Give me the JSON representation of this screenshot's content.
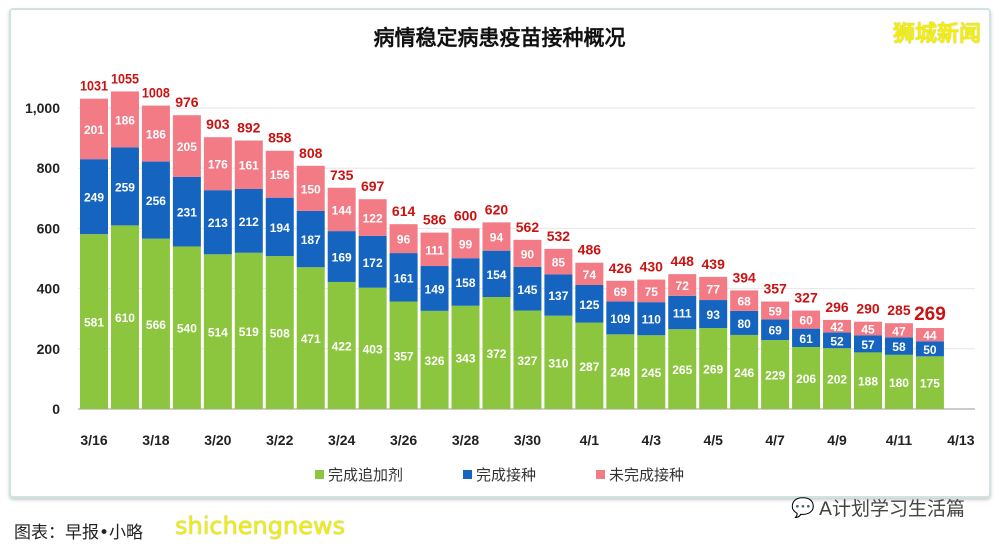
{
  "brand": "狮城新闻",
  "wechat": "A计划学习生活篇",
  "credit": "图表：早报•小略",
  "watermark": "shichengnews",
  "colors": {
    "booster": "#8cc63f",
    "completed": "#1565c0",
    "incomplete": "#f37b86",
    "total_label": "#cc1111"
  },
  "chart_data": {
    "type": "bar",
    "stacked": true,
    "title": "病情稳定病患疫苗接种概况",
    "categories": [
      "3/16",
      "3/17",
      "3/18",
      "3/19",
      "3/20",
      "3/21",
      "3/22",
      "3/23",
      "3/24",
      "3/25",
      "3/26",
      "3/27",
      "3/28",
      "3/29",
      "3/30",
      "3/31",
      "4/1",
      "4/2",
      "4/3",
      "4/4",
      "4/5",
      "4/6",
      "4/7",
      "4/8",
      "4/9",
      "4/10",
      "4/11",
      "4/12"
    ],
    "x_tick_labels": [
      "3/16",
      "3/18",
      "3/20",
      "3/22",
      "3/24",
      "3/26",
      "3/28",
      "3/30",
      "4/1",
      "4/3",
      "4/5",
      "4/7",
      "4/9",
      "4/11",
      "4/13"
    ],
    "y_tick_labels": [
      "0",
      "200",
      "400",
      "600",
      "800",
      "1,000"
    ],
    "ylim": [
      0,
      1000
    ],
    "grid": true,
    "legend_position": "bottom",
    "series": [
      {
        "name": "完成追加剂",
        "values": [
          581,
          610,
          566,
          540,
          514,
          519,
          508,
          471,
          422,
          403,
          357,
          326,
          343,
          372,
          327,
          310,
          287,
          248,
          245,
          265,
          269,
          246,
          229,
          206,
          202,
          188,
          180,
          175
        ]
      },
      {
        "name": "完成接种",
        "values": [
          249,
          259,
          256,
          231,
          213,
          212,
          194,
          187,
          169,
          172,
          161,
          149,
          158,
          154,
          145,
          137,
          125,
          109,
          110,
          111,
          93,
          80,
          69,
          61,
          52,
          57,
          58,
          50
        ]
      },
      {
        "name": "未完成接种",
        "values": [
          201,
          186,
          186,
          205,
          176,
          161,
          156,
          150,
          144,
          122,
          96,
          111,
          99,
          94,
          90,
          85,
          74,
          69,
          75,
          72,
          77,
          68,
          59,
          60,
          42,
          45,
          47,
          44
        ]
      }
    ],
    "totals": [
      1031,
      1055,
      1008,
      976,
      903,
      892,
      858,
      808,
      735,
      697,
      614,
      586,
      600,
      620,
      562,
      532,
      486,
      426,
      430,
      448,
      439,
      394,
      357,
      327,
      296,
      290,
      285,
      269
    ]
  }
}
